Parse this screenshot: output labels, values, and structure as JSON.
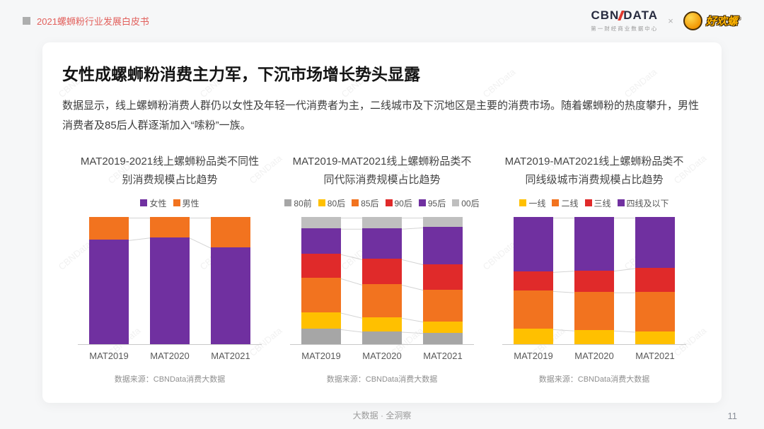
{
  "page": {
    "watermark": "CBNData",
    "header": {
      "breadcrumb": "2021螺蛳粉行业发展白皮书",
      "cbndata_logo_left": "CBN",
      "cbndata_logo_right": "DATA",
      "cbndata_tagline": "第一财经商业数据中心",
      "separator": "×",
      "partner_logo": "好欢螺",
      "partner_reg": "®"
    },
    "title": "女性成螺蛳粉消费主力军，下沉市场增长势头显露",
    "body": "数据显示，线上螺蛳粉消费人群仍以女性及年轻一代消费者为主，二线城市及下沉地区是主要的消费市场。随着螺蛳粉的热度攀升，男性消费者及85后人群逐渐加入“嗦粉”一族。",
    "footer": "大数据 · 全洞察",
    "page_number": "11"
  },
  "colors": {
    "purple": "#7030A0",
    "orange": "#F2731F",
    "red": "#E02A2A",
    "yellow": "#FFC000",
    "gray": "#A6A6A6",
    "light_gray": "#BFBFBF",
    "accent_red": "#E2605C"
  },
  "chart_data": [
    {
      "type": "bar",
      "stacked": true,
      "unit": "percent",
      "title": "MAT2019-2021线上螺蛳粉品类不同性别消费规模占比趋势",
      "categories": [
        "MAT2019",
        "MAT2020",
        "MAT2021"
      ],
      "series": [
        {
          "name": "女性",
          "color": "#7030A0",
          "values": [
            82,
            84,
            76
          ]
        },
        {
          "name": "男性",
          "color": "#F2731F",
          "values": [
            18,
            16,
            24
          ]
        }
      ],
      "ylim": [
        0,
        100
      ],
      "legend_position": "top",
      "grid": false,
      "source": "数据来源：CBNData消费大数据"
    },
    {
      "type": "bar",
      "stacked": true,
      "unit": "percent",
      "title": "MAT2019-MAT2021线上螺蛳粉品类不同代际消费规模占比趋势",
      "categories": [
        "MAT2019",
        "MAT2020",
        "MAT2021"
      ],
      "series": [
        {
          "name": "80前",
          "color": "#A6A6A6",
          "values": [
            12,
            10,
            9
          ]
        },
        {
          "name": "80后",
          "color": "#FFC000",
          "values": [
            13,
            11,
            9
          ]
        },
        {
          "name": "85后",
          "color": "#F2731F",
          "values": [
            27,
            26,
            25
          ]
        },
        {
          "name": "90后",
          "color": "#E02A2A",
          "values": [
            19,
            20,
            20
          ]
        },
        {
          "name": "95后",
          "color": "#7030A0",
          "values": [
            20,
            24,
            29
          ]
        },
        {
          "name": "00后",
          "color": "#BFBFBF",
          "values": [
            9,
            9,
            8
          ]
        }
      ],
      "ylim": [
        0,
        100
      ],
      "legend_position": "top",
      "grid": false,
      "source": "数据来源：CBNData消费大数据"
    },
    {
      "type": "bar",
      "stacked": true,
      "unit": "percent",
      "title": "MAT2019-MAT2021线上螺蛳粉品类不同线级城市消费规模占比趋势",
      "categories": [
        "MAT2019",
        "MAT2020",
        "MAT2021"
      ],
      "series": [
        {
          "name": "一线",
          "color": "#FFC000",
          "values": [
            12,
            11,
            10
          ]
        },
        {
          "name": "二线",
          "color": "#F2731F",
          "values": [
            30,
            30,
            31
          ]
        },
        {
          "name": "三线",
          "color": "#E02A2A",
          "values": [
            15,
            17,
            19
          ]
        },
        {
          "name": "四线及以下",
          "color": "#7030A0",
          "values": [
            43,
            42,
            40
          ]
        }
      ],
      "ylim": [
        0,
        100
      ],
      "legend_position": "top",
      "grid": false,
      "source": "数据来源：CBNData消费大数据"
    }
  ]
}
